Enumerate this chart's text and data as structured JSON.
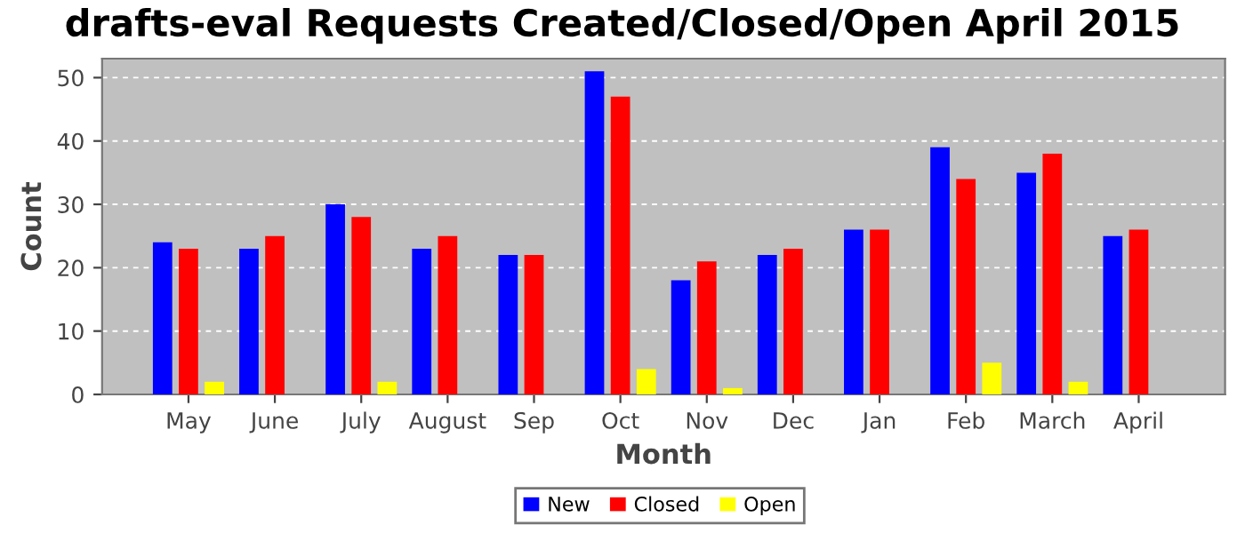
{
  "chart_data": {
    "type": "bar",
    "title": "drafts-eval Requests Created/Closed/Open April 2015",
    "xlabel": "Month",
    "ylabel": "Count",
    "categories": [
      "May",
      "June",
      "July",
      "August",
      "Sep",
      "Oct",
      "Nov",
      "Dec",
      "Jan",
      "Feb",
      "March",
      "April"
    ],
    "series": [
      {
        "name": "New",
        "color": "#0000ff",
        "values": [
          24,
          23,
          30,
          23,
          22,
          51,
          18,
          22,
          26,
          39,
          35,
          25
        ]
      },
      {
        "name": "Closed",
        "color": "#ff0000",
        "values": [
          23,
          25,
          28,
          25,
          22,
          47,
          21,
          23,
          26,
          34,
          38,
          26
        ]
      },
      {
        "name": "Open",
        "color": "#ffff00",
        "values": [
          2,
          0,
          2,
          0,
          0,
          4,
          1,
          0,
          0,
          5,
          2,
          0
        ]
      }
    ],
    "ylim": [
      0,
      53
    ],
    "yticks": [
      0,
      10,
      20,
      30,
      40,
      50
    ],
    "grid": "y",
    "legend": "bottom"
  }
}
